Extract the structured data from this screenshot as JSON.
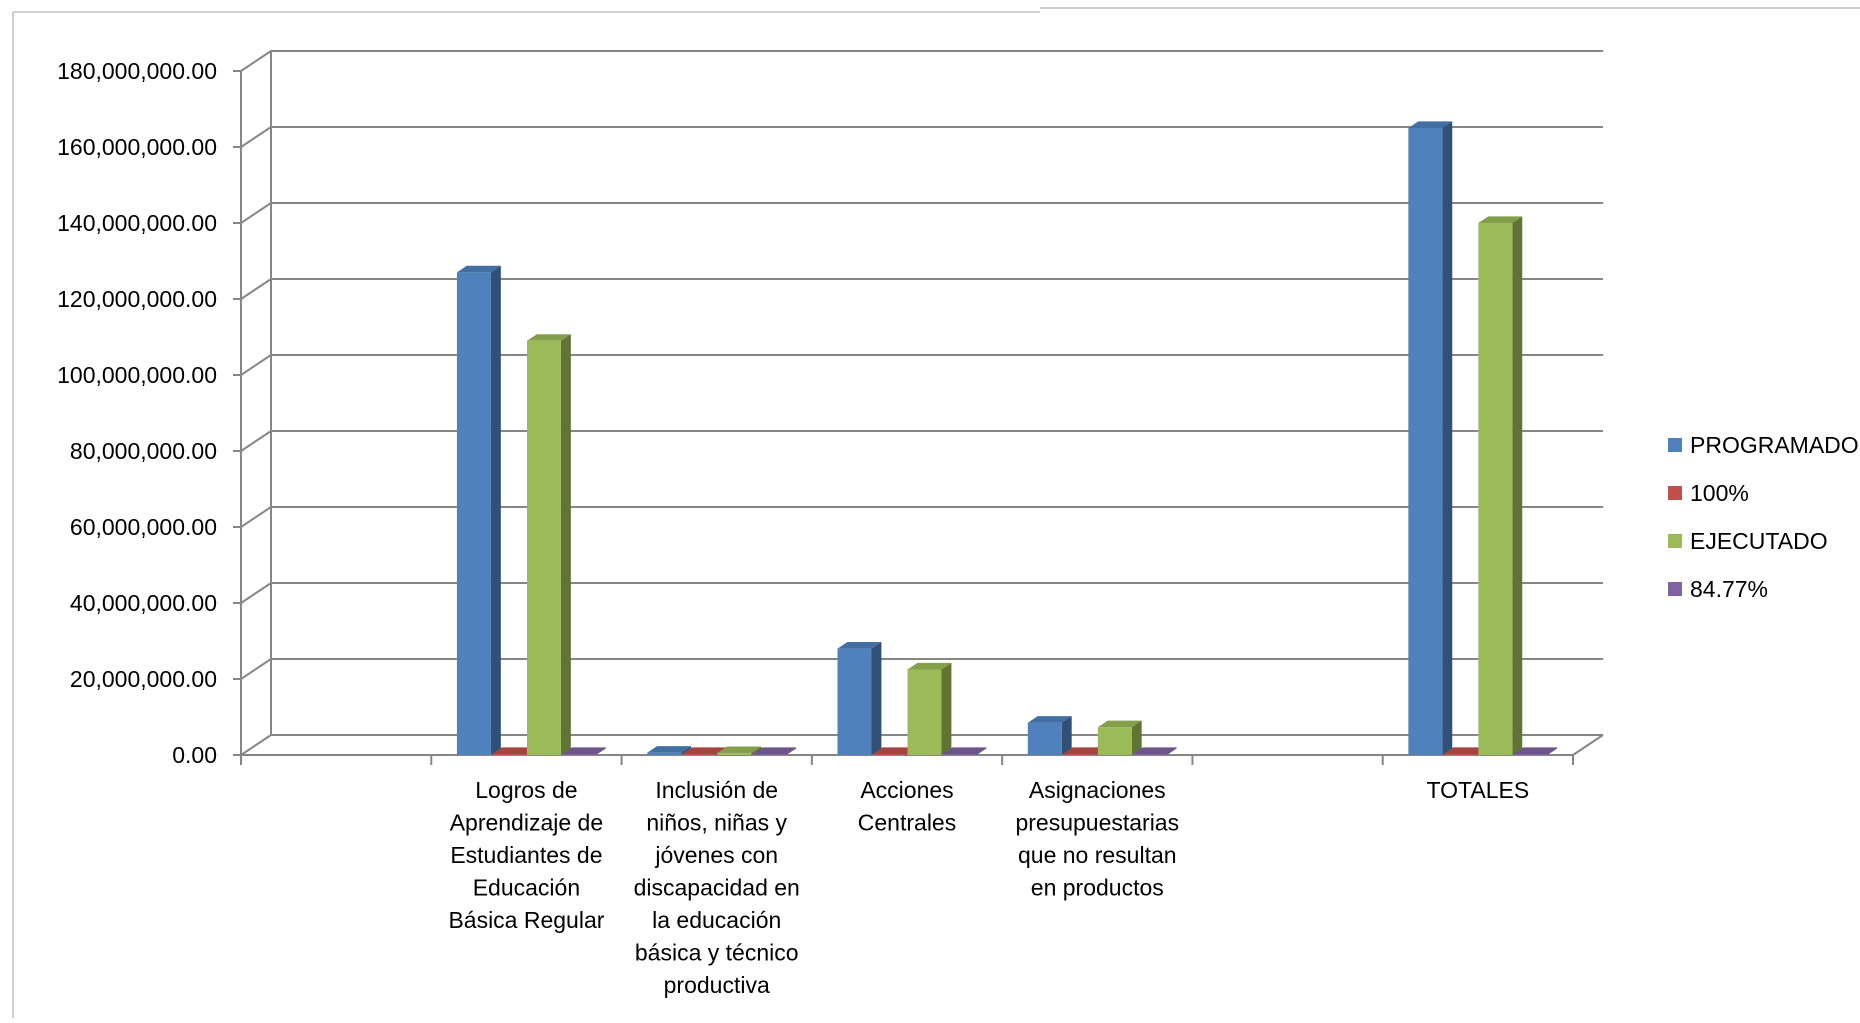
{
  "chart_data": {
    "type": "bar",
    "title": "",
    "xlabel": "",
    "ylabel": "",
    "ylim": [
      0,
      180000000
    ],
    "y_ticks": [
      "0.00",
      "20,000,000.00",
      "40,000,000.00",
      "60,000,000.00",
      "80,000,000.00",
      "100,000,000.00",
      "120,000,000.00",
      "140,000,000.00",
      "160,000,000.00",
      "180,000,000.00"
    ],
    "categories": [
      "",
      "Logros de Aprendizaje de Estudiantes de Educación Básica Regular",
      "Inclusión de niños, niñas y jóvenes con discapacidad en la educación básica y técnico productiva",
      "Acciones Centrales",
      "Asignaciones presupuestarias que no resultan en productos",
      "",
      "TOTALES"
    ],
    "category_label_lines": [
      [],
      [
        "Logros de",
        "Aprendizaje de",
        "Estudiantes de",
        "Educación",
        "Básica Regular"
      ],
      [
        "Inclusión de",
        "niños, niñas y",
        "jóvenes con",
        "discapacidad en",
        "la educación",
        "básica y técnico",
        "productiva"
      ],
      [
        "Acciones",
        "Centrales"
      ],
      [
        "Asignaciones",
        "presupuestarias",
        "que no resultan",
        "en productos"
      ],
      [],
      [
        "TOTALES"
      ]
    ],
    "series": [
      {
        "name": "PROGRAMADO",
        "color": "#4f81bd",
        "values": [
          null,
          127000000,
          600000,
          28000000,
          8500000,
          null,
          165000000
        ]
      },
      {
        "name": "100%",
        "color": "#c0504d",
        "values": [
          null,
          1,
          1,
          1,
          1,
          null,
          1
        ]
      },
      {
        "name": "EJECUTADO",
        "color": "#9bbb59",
        "values": [
          null,
          109000000,
          500000,
          22500000,
          7300000,
          null,
          140000000
        ]
      },
      {
        "name": "84.77%",
        "color": "#8064a2",
        "values": [
          null,
          0.8583,
          0.8333,
          0.8036,
          0.8588,
          null,
          0.8477
        ]
      }
    ],
    "grid": true,
    "legend_position": "right",
    "style": "3d-column"
  }
}
